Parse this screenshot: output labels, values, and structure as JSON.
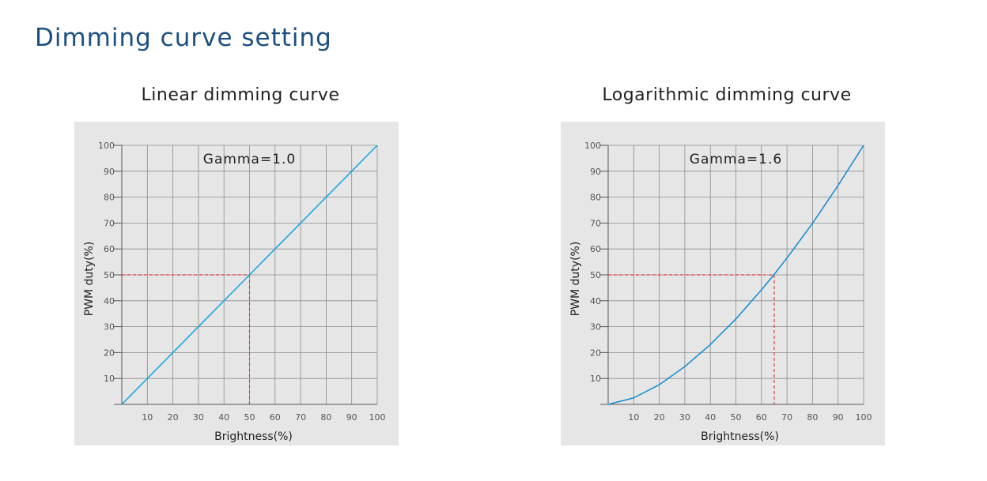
{
  "page": {
    "title": "Dimming curve setting"
  },
  "colors": {
    "curve": "#1aa7e0",
    "curve_log": "#1a8fd0",
    "guide": "#e04040",
    "grid": "#8c8c8c",
    "panel": "#e6e6e6",
    "title": "#1c4f80"
  },
  "chart_data": [
    {
      "type": "line",
      "title": "Linear dimming curve",
      "annotation": "Gamma=1.0",
      "gamma": 1.0,
      "xlabel": "Brightness(%)",
      "ylabel": "PWM duty(%)",
      "xlim": [
        0,
        100
      ],
      "ylim": [
        0,
        100
      ],
      "x_ticks": [
        10,
        20,
        30,
        40,
        50,
        60,
        70,
        80,
        90,
        100
      ],
      "y_ticks": [
        10,
        20,
        30,
        40,
        50,
        60,
        70,
        80,
        90,
        100
      ],
      "grid": true,
      "series": [
        {
          "x": [
            0,
            10,
            20,
            30,
            40,
            50,
            60,
            70,
            80,
            90,
            100
          ],
          "y": [
            0,
            10,
            20,
            30,
            40,
            50,
            60,
            70,
            80,
            90,
            100
          ]
        }
      ],
      "guide_point": {
        "x": 50,
        "y": 50
      }
    },
    {
      "type": "line",
      "title": "Logarithmic dimming curve",
      "annotation": "Gamma=1.6",
      "gamma": 1.6,
      "xlabel": "Brightness(%)",
      "ylabel": "PWM duty(%)",
      "xlim": [
        0,
        100
      ],
      "ylim": [
        0,
        100
      ],
      "x_ticks": [
        10,
        20,
        30,
        40,
        50,
        60,
        70,
        80,
        90,
        100
      ],
      "y_ticks": [
        10,
        20,
        30,
        40,
        50,
        60,
        70,
        80,
        90,
        100
      ],
      "grid": true,
      "series": [
        {
          "x": [
            0,
            10,
            20,
            30,
            40,
            50,
            60,
            65,
            70,
            80,
            90,
            100
          ],
          "y": [
            0,
            2.5,
            7.6,
            14.6,
            23.1,
            33.0,
            44.2,
            50.2,
            56.5,
            69.9,
            84.5,
            100
          ]
        }
      ],
      "guide_point": {
        "x": 65,
        "y": 50
      }
    }
  ]
}
